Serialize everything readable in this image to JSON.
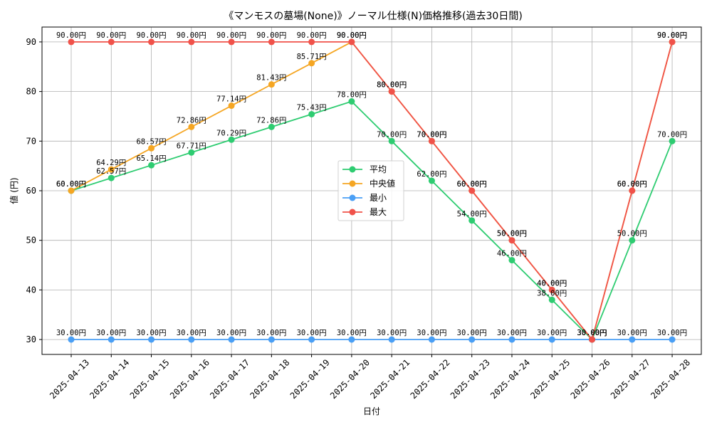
{
  "chart_data": {
    "type": "line",
    "title": "《マンモスの墓場(None)》ノーマル仕様(N)価格推移(過去30日間)",
    "xlabel": "日付",
    "ylabel": "値 (円)",
    "ylim": [
      27,
      93
    ],
    "yticks": [
      30,
      40,
      50,
      60,
      70,
      80,
      90
    ],
    "grid": true,
    "legend_position": "center-right",
    "label_suffix": "円",
    "categories": [
      "2025-04-13",
      "2025-04-14",
      "2025-04-15",
      "2025-04-16",
      "2025-04-17",
      "2025-04-18",
      "2025-04-19",
      "2025-04-20",
      "2025-04-21",
      "2025-04-22",
      "2025-04-23",
      "2025-04-24",
      "2025-04-25",
      "2025-04-26",
      "2025-04-27",
      "2025-04-28"
    ],
    "series": [
      {
        "name": "平均",
        "color": "#2ecc71",
        "values": [
          60.0,
          62.57,
          65.14,
          67.71,
          70.29,
          72.86,
          75.43,
          78.0,
          70.0,
          62.0,
          54.0,
          46.0,
          38.0,
          30.0,
          50.0,
          70.0
        ]
      },
      {
        "name": "中央値",
        "color": "#f5a623",
        "values": [
          60.0,
          64.29,
          68.57,
          72.86,
          77.14,
          81.43,
          85.71,
          90.0,
          80.0,
          70.0,
          60.0,
          50.0,
          40.0,
          30.0,
          60.0,
          90.0
        ]
      },
      {
        "name": "最小",
        "color": "#4a9ff5",
        "values": [
          30.0,
          30.0,
          30.0,
          30.0,
          30.0,
          30.0,
          30.0,
          30.0,
          30.0,
          30.0,
          30.0,
          30.0,
          30.0,
          30.0,
          30.0,
          30.0
        ]
      },
      {
        "name": "最大",
        "color": "#f0524a",
        "values": [
          90.0,
          90.0,
          90.0,
          90.0,
          90.0,
          90.0,
          90.0,
          90.0,
          80.0,
          70.0,
          60.0,
          50.0,
          40.0,
          30.0,
          60.0,
          90.0
        ]
      }
    ]
  }
}
